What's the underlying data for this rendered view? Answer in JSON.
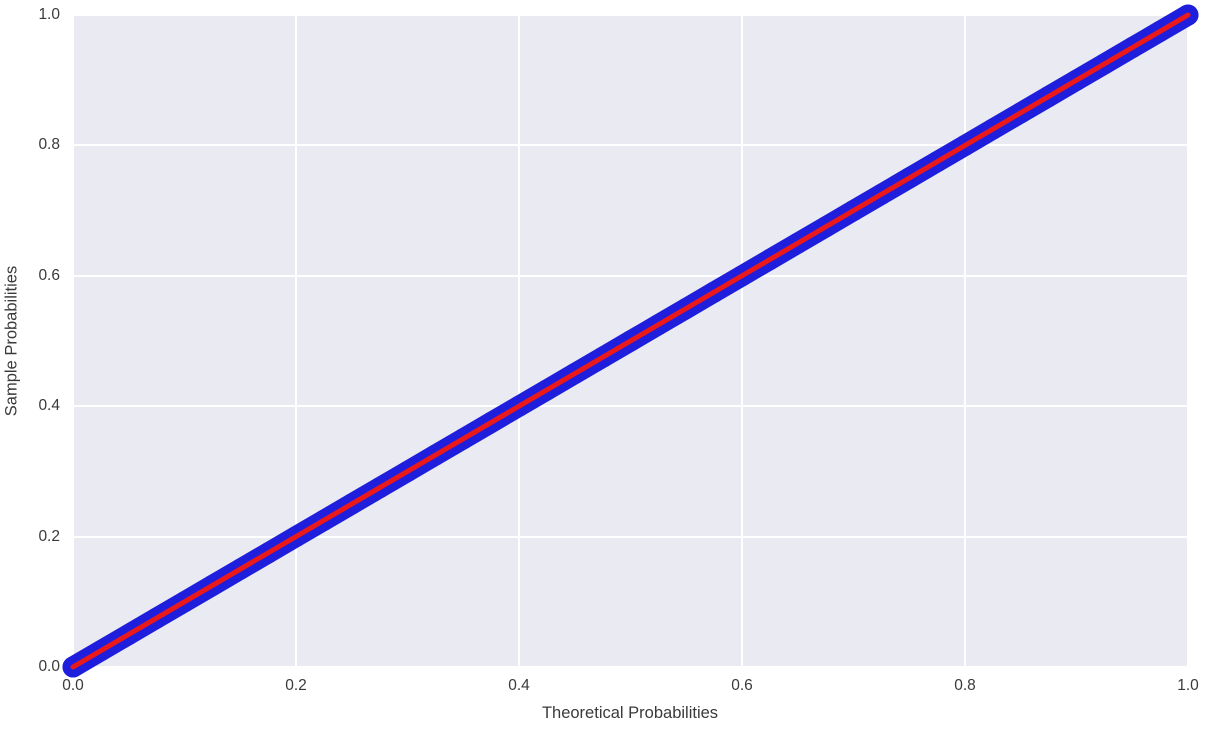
{
  "chart_data": {
    "type": "scatter",
    "subtype": "pp-plot",
    "title": "",
    "xlabel": "Theoretical Probabilities",
    "ylabel": "Sample Probabilities",
    "xlim": [
      0.0,
      1.0
    ],
    "ylim": [
      0.0,
      1.0
    ],
    "x_ticks": [
      "0.0",
      "0.2",
      "0.4",
      "0.6",
      "0.8",
      "1.0"
    ],
    "y_ticks": [
      "0.0",
      "0.2",
      "0.4",
      "0.6",
      "0.8",
      "1.0"
    ],
    "grid": true,
    "legend": false,
    "series": [
      {
        "name": "sample_probabilities",
        "type": "scatter",
        "marker": "circle",
        "color": "#1e1edc",
        "x": [
          0,
          0.025,
          0.05,
          0.075,
          0.1,
          0.125,
          0.15,
          0.175,
          0.2,
          0.225,
          0.25,
          0.275,
          0.3,
          0.325,
          0.35,
          0.375,
          0.4,
          0.425,
          0.45,
          0.475,
          0.5,
          0.525,
          0.55,
          0.575,
          0.6,
          0.625,
          0.65,
          0.675,
          0.7,
          0.725,
          0.75,
          0.775,
          0.8,
          0.825,
          0.85,
          0.875,
          0.9,
          0.925,
          0.95,
          0.975,
          1.0
        ],
        "y": [
          0,
          0.025,
          0.05,
          0.075,
          0.1,
          0.125,
          0.15,
          0.175,
          0.2,
          0.225,
          0.25,
          0.275,
          0.3,
          0.325,
          0.35,
          0.375,
          0.4,
          0.425,
          0.45,
          0.475,
          0.5,
          0.525,
          0.55,
          0.575,
          0.6,
          0.625,
          0.65,
          0.675,
          0.7,
          0.725,
          0.75,
          0.775,
          0.8,
          0.825,
          0.85,
          0.875,
          0.9,
          0.925,
          0.95,
          0.975,
          1.0
        ]
      },
      {
        "name": "reference_line",
        "type": "line",
        "color": "#eb1919",
        "points": [
          [
            0,
            0
          ],
          [
            1,
            1
          ]
        ]
      }
    ],
    "colors": {
      "plot_background": "#eaeaf2",
      "gridline": "#ffffff",
      "figure_background": "#ffffff",
      "tick_text": "#3a3a3a",
      "scatter": "#1e1edc",
      "reference_line": "#eb1919"
    }
  }
}
